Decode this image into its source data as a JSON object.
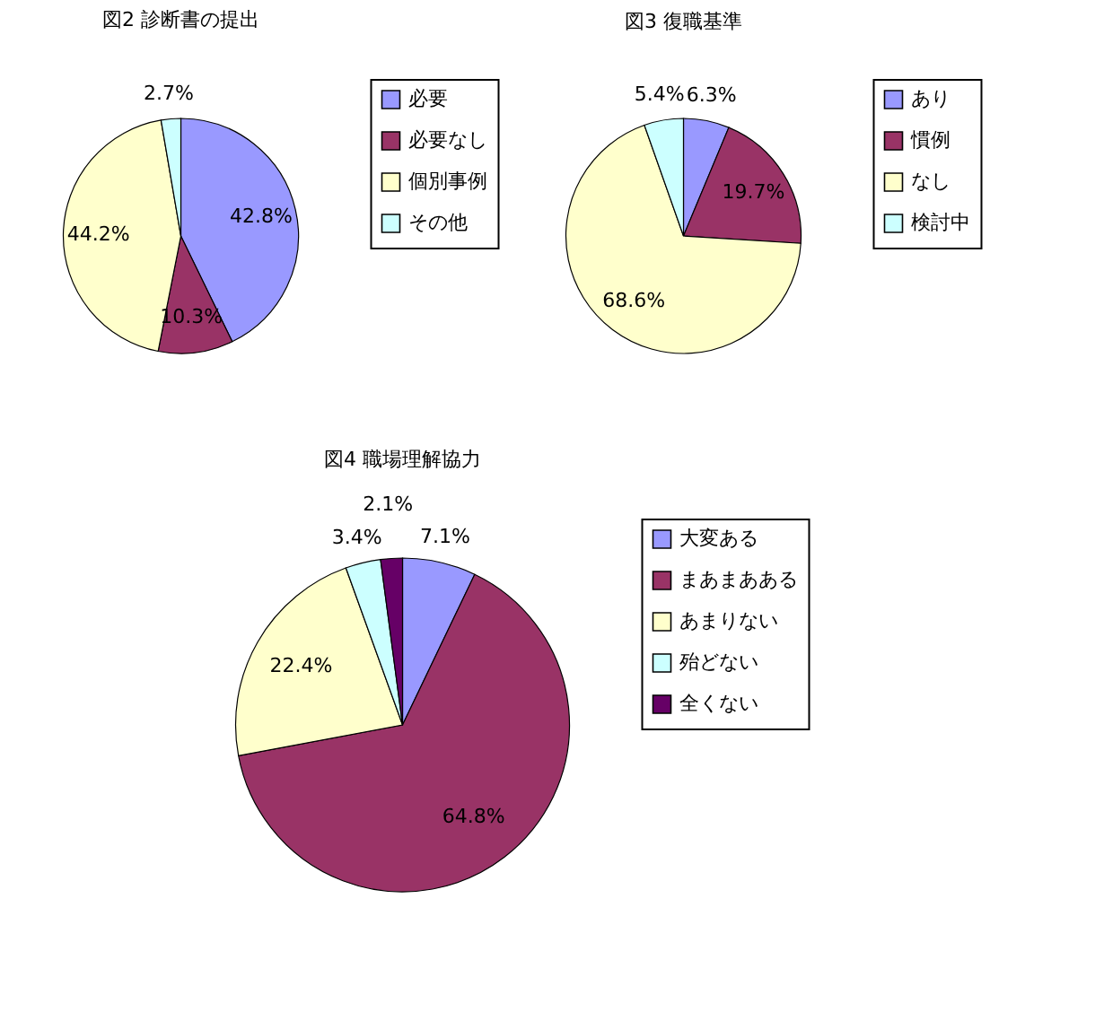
{
  "chart_data": [
    {
      "type": "pie",
      "title": "図2  診断書の提出",
      "categories": [
        "必要",
        "必要なし",
        "個別事例",
        "その他"
      ],
      "values": [
        42.8,
        10.3,
        44.2,
        2.7
      ],
      "colors": [
        "#9999ff",
        "#993366",
        "#ffffcc",
        "#ccffff"
      ],
      "value_labels": [
        "42.8%",
        "10.3%",
        "44.2%",
        "2.7%"
      ],
      "legend": "right"
    },
    {
      "type": "pie",
      "title": "図3  復職基準",
      "categories": [
        "あり",
        "慣例",
        "なし",
        "検討中"
      ],
      "values": [
        6.3,
        19.7,
        68.6,
        5.4
      ],
      "colors": [
        "#9999ff",
        "#993366",
        "#ffffcc",
        "#ccffff"
      ],
      "value_labels": [
        "6.3%",
        "19.7%",
        "68.6%",
        "5.4%"
      ],
      "legend": "right"
    },
    {
      "type": "pie",
      "title": "図4  職場理解協力",
      "categories": [
        "大変ある",
        "まあまあある",
        "あまりない",
        "殆どない",
        "全くない"
      ],
      "values": [
        7.1,
        64.8,
        22.4,
        3.4,
        2.1
      ],
      "colors": [
        "#9999ff",
        "#993366",
        "#ffffcc",
        "#ccffff",
        "#660066"
      ],
      "value_labels": [
        "7.1%",
        "64.8%",
        "22.4%",
        "3.4%",
        "2.1%"
      ],
      "legend": "right"
    }
  ]
}
